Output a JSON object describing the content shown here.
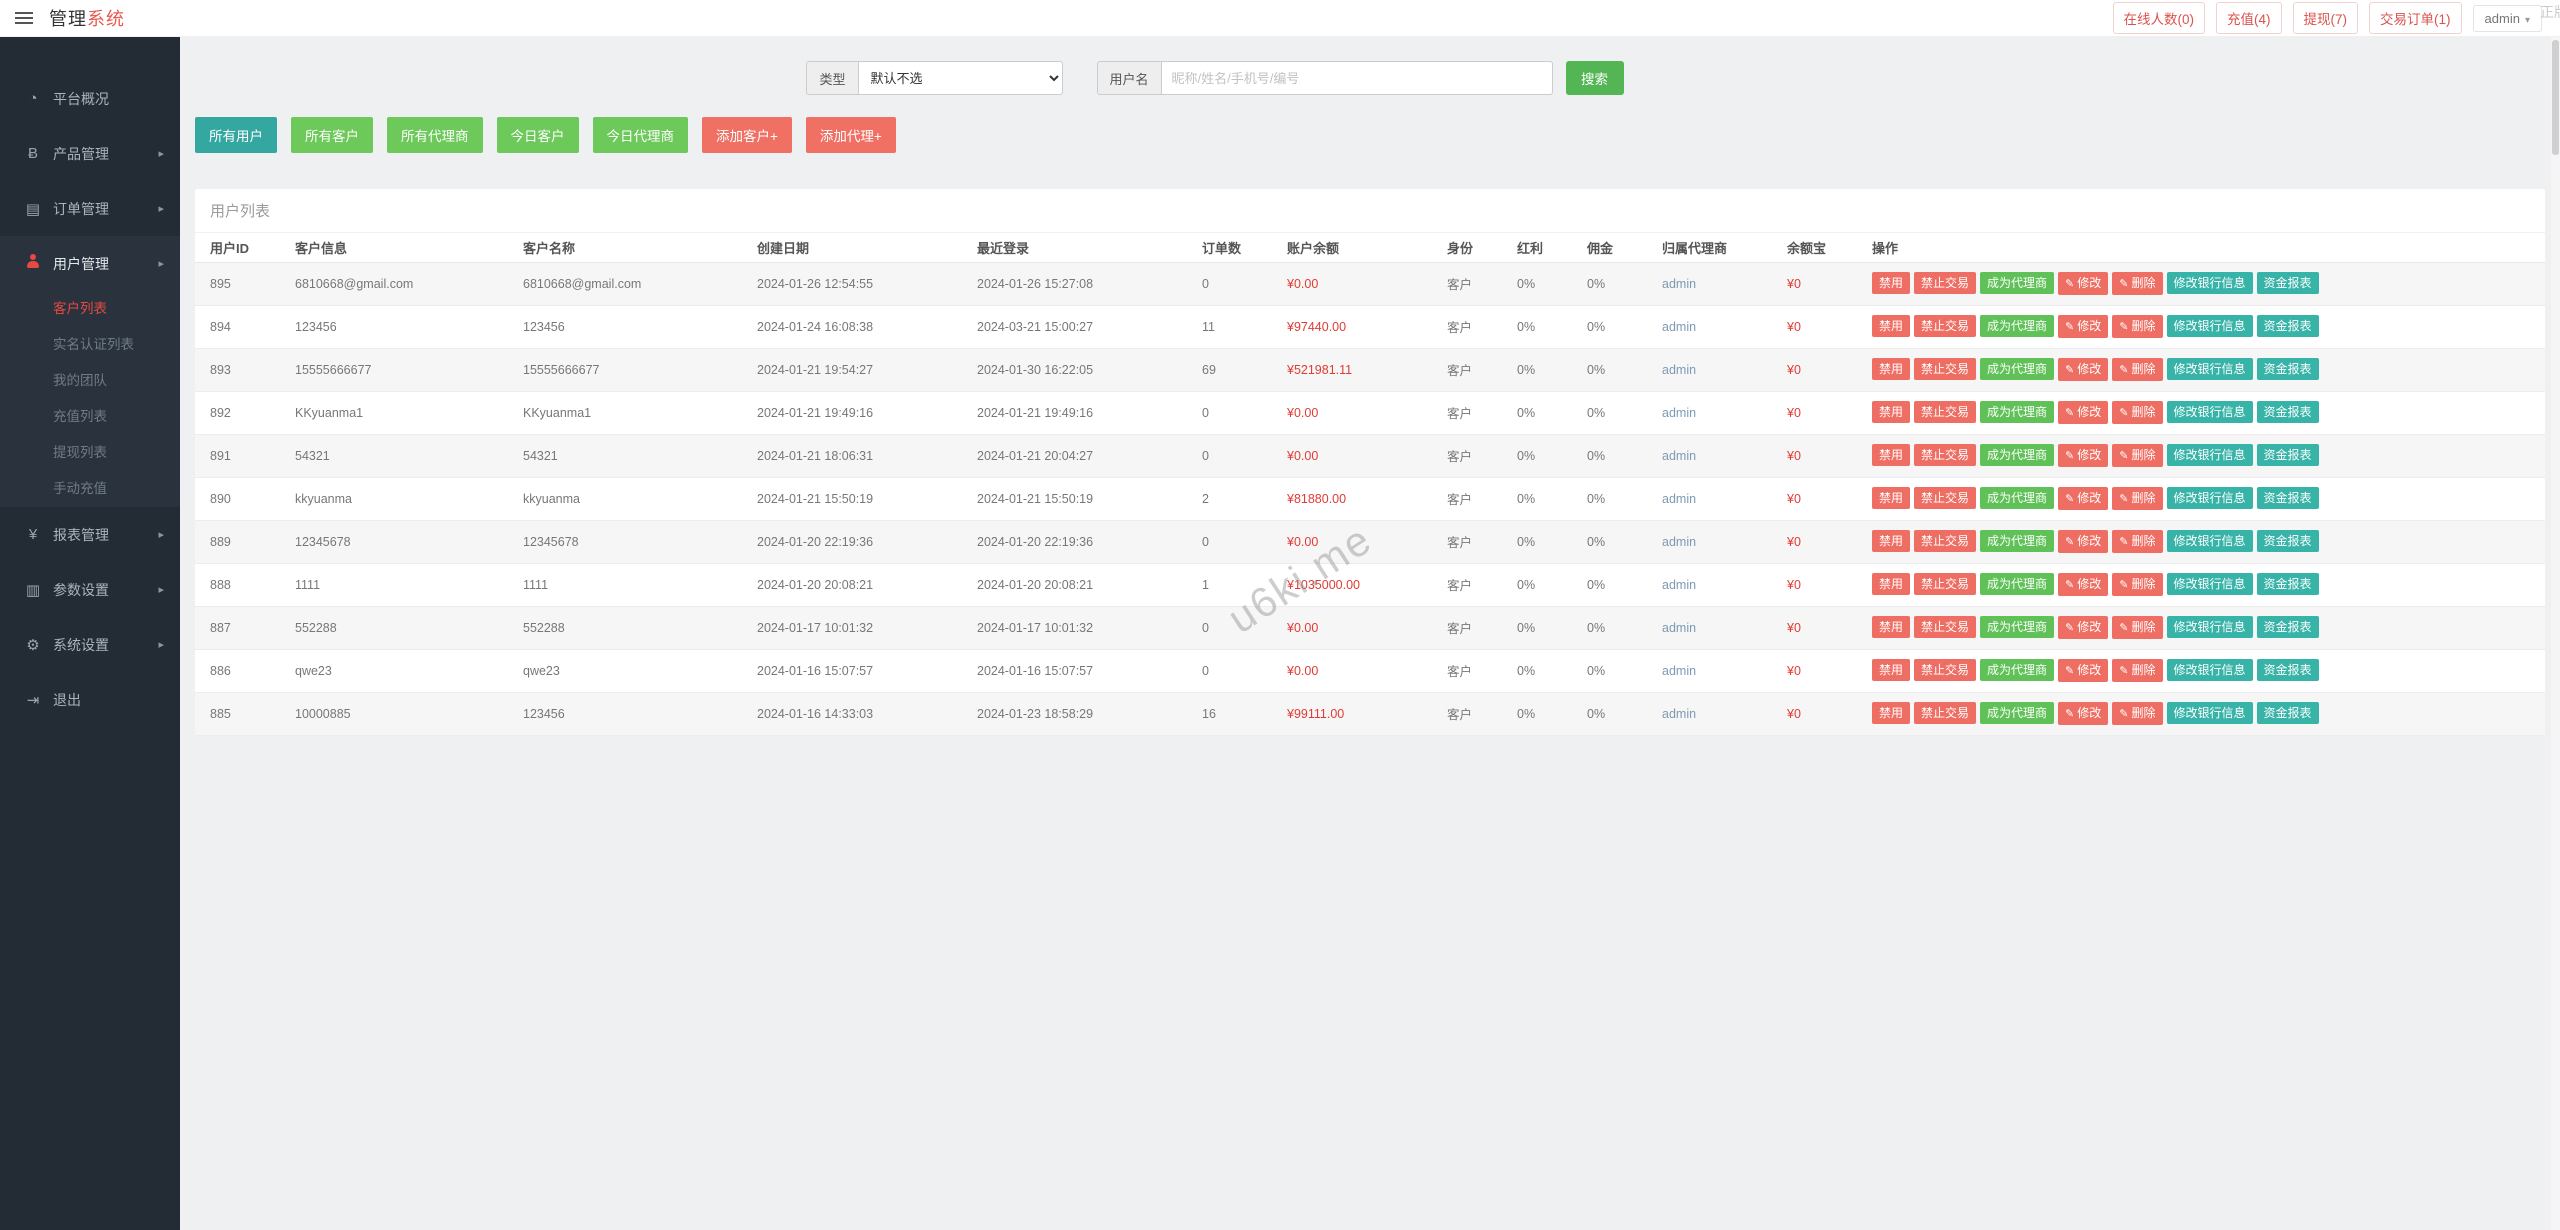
{
  "topbar": {
    "brand_black": "管理",
    "brand_red": "系统",
    "links": [
      {
        "label": "在线人数(0)"
      },
      {
        "label": "充值(4)"
      },
      {
        "label": "提现(7)"
      },
      {
        "label": "交易订单(1)"
      }
    ],
    "user": "admin",
    "user_caret": "▾"
  },
  "sidebar": {
    "items": [
      {
        "key": "dashboard",
        "label": "平台概况",
        "icon": "dashboard-icon",
        "glyph": "◔",
        "has_arrow": false,
        "expanded": false
      },
      {
        "key": "products",
        "label": "产品管理",
        "icon": "product-icon",
        "glyph": "Ƀ",
        "has_arrow": true,
        "expanded": false
      },
      {
        "key": "orders",
        "label": "订单管理",
        "icon": "orders-icon",
        "glyph": "▤",
        "has_arrow": true,
        "expanded": false
      },
      {
        "key": "users",
        "label": "用户管理",
        "icon": "users-icon",
        "glyph": "person",
        "has_arrow": true,
        "expanded": true,
        "children": [
          {
            "label": "客户列表",
            "active": true
          },
          {
            "label": "实名认证列表",
            "active": false
          },
          {
            "label": "我的团队",
            "active": false
          },
          {
            "label": "充值列表",
            "active": false
          },
          {
            "label": "提现列表",
            "active": false
          },
          {
            "label": "手动充值",
            "active": false
          }
        ]
      },
      {
        "key": "reports",
        "label": "报表管理",
        "icon": "report-icon",
        "glyph": "¥",
        "has_arrow": true,
        "expanded": false
      },
      {
        "key": "params",
        "label": "参数设置",
        "icon": "params-icon",
        "glyph": "▥",
        "has_arrow": true,
        "expanded": false
      },
      {
        "key": "system",
        "label": "系统设置",
        "icon": "settings-icon",
        "glyph": "⚙",
        "has_arrow": true,
        "expanded": false
      },
      {
        "key": "logout",
        "label": "退出",
        "icon": "logout-icon",
        "glyph": "⇥",
        "has_arrow": false,
        "expanded": false
      }
    ]
  },
  "search": {
    "type_label": "类型",
    "type_value": "默认不选",
    "user_label": "用户名",
    "placeholder": "昵称/姓名/手机号/编号",
    "search_button": "搜索"
  },
  "toolbar": {
    "buttons": [
      {
        "label": "所有用户",
        "color": "teal"
      },
      {
        "label": "所有客户",
        "color": "green"
      },
      {
        "label": "所有代理商",
        "color": "green"
      },
      {
        "label": "今日客户",
        "color": "green"
      },
      {
        "label": "今日代理商",
        "color": "green"
      },
      {
        "label": "添加客户+",
        "color": "red"
      },
      {
        "label": "添加代理+",
        "color": "red"
      }
    ]
  },
  "panel": {
    "title": "用户列表"
  },
  "table": {
    "headers": [
      "用户ID",
      "客户信息",
      "客户名称",
      "创建日期",
      "最近登录",
      "订单数",
      "账户余额",
      "身份",
      "红利",
      "佣金",
      "归属代理商",
      "余额宝",
      "操作"
    ],
    "row_actions": [
      {
        "label": "禁用",
        "color": "red",
        "icon": ""
      },
      {
        "label": "禁止交易",
        "color": "red",
        "icon": ""
      },
      {
        "label": "成为代理商",
        "color": "green",
        "icon": ""
      },
      {
        "label": "修改",
        "color": "red",
        "icon": "pencil"
      },
      {
        "label": "删除",
        "color": "red",
        "icon": "pencil"
      },
      {
        "label": "修改银行信息",
        "color": "teal",
        "icon": ""
      },
      {
        "label": "资金报表",
        "color": "teal",
        "icon": ""
      }
    ],
    "rows": [
      {
        "id": "895",
        "info": "6810668@gmail.com",
        "name": "6810668@gmail.com",
        "created": "2024-01-26 12:54:55",
        "last_login": "2024-01-26 15:27:08",
        "orders": "0",
        "balance": "¥0.00",
        "role": "客户",
        "bonus": "0%",
        "commission": "0%",
        "agent": "admin",
        "yuebao": "¥0"
      },
      {
        "id": "894",
        "info": "123456",
        "name": "123456",
        "created": "2024-01-24 16:08:38",
        "last_login": "2024-03-21 15:00:27",
        "orders": "11",
        "balance": "¥97440.00",
        "role": "客户",
        "bonus": "0%",
        "commission": "0%",
        "agent": "admin",
        "yuebao": "¥0"
      },
      {
        "id": "893",
        "info": "15555666677",
        "name": "15555666677",
        "created": "2024-01-21 19:54:27",
        "last_login": "2024-01-30 16:22:05",
        "orders": "69",
        "balance": "¥521981.11",
        "role": "客户",
        "bonus": "0%",
        "commission": "0%",
        "agent": "admin",
        "yuebao": "¥0"
      },
      {
        "id": "892",
        "info": "KKyuanma1",
        "name": "KKyuanma1",
        "created": "2024-01-21 19:49:16",
        "last_login": "2024-01-21 19:49:16",
        "orders": "0",
        "balance": "¥0.00",
        "role": "客户",
        "bonus": "0%",
        "commission": "0%",
        "agent": "admin",
        "yuebao": "¥0"
      },
      {
        "id": "891",
        "info": "54321",
        "name": "54321",
        "created": "2024-01-21 18:06:31",
        "last_login": "2024-01-21 20:04:27",
        "orders": "0",
        "balance": "¥0.00",
        "role": "客户",
        "bonus": "0%",
        "commission": "0%",
        "agent": "admin",
        "yuebao": "¥0"
      },
      {
        "id": "890",
        "info": "kkyuanma",
        "name": "kkyuanma",
        "created": "2024-01-21 15:50:19",
        "last_login": "2024-01-21 15:50:19",
        "orders": "2",
        "balance": "¥81880.00",
        "role": "客户",
        "bonus": "0%",
        "commission": "0%",
        "agent": "admin",
        "yuebao": "¥0"
      },
      {
        "id": "889",
        "info": "12345678",
        "name": "12345678",
        "created": "2024-01-20 22:19:36",
        "last_login": "2024-01-20 22:19:36",
        "orders": "0",
        "balance": "¥0.00",
        "role": "客户",
        "bonus": "0%",
        "commission": "0%",
        "agent": "admin",
        "yuebao": "¥0"
      },
      {
        "id": "888",
        "info": "1111",
        "name": "1111",
        "created": "2024-01-20 20:08:21",
        "last_login": "2024-01-20 20:08:21",
        "orders": "1",
        "balance": "¥1035000.00",
        "role": "客户",
        "bonus": "0%",
        "commission": "0%",
        "agent": "admin",
        "yuebao": "¥0"
      },
      {
        "id": "887",
        "info": "552288",
        "name": "552288",
        "created": "2024-01-17 10:01:32",
        "last_login": "2024-01-17 10:01:32",
        "orders": "0",
        "balance": "¥0.00",
        "role": "客户",
        "bonus": "0%",
        "commission": "0%",
        "agent": "admin",
        "yuebao": "¥0"
      },
      {
        "id": "886",
        "info": "qwe23",
        "name": "qwe23",
        "created": "2024-01-16 15:07:57",
        "last_login": "2024-01-16 15:07:57",
        "orders": "0",
        "balance": "¥0.00",
        "role": "客户",
        "bonus": "0%",
        "commission": "0%",
        "agent": "admin",
        "yuebao": "¥0"
      },
      {
        "id": "885",
        "info": "10000885",
        "name": "123456",
        "created": "2024-01-16 14:33:03",
        "last_login": "2024-01-23 18:58:29",
        "orders": "16",
        "balance": "¥99111.00",
        "role": "客户",
        "bonus": "0%",
        "commission": "0%",
        "agent": "admin",
        "yuebao": "¥0"
      }
    ]
  },
  "watermark": "u6ki.me",
  "corner_watermark": "正版",
  "colors": {
    "accent_red": "#e64a42",
    "button_salmon": "#ee6e63",
    "button_green": "#6cc95a",
    "button_teal": "#34a7a1",
    "value_red": "#e03b34",
    "sidebar_bg": "#232c34",
    "sidebar_expanded_bg": "#2a333d"
  }
}
